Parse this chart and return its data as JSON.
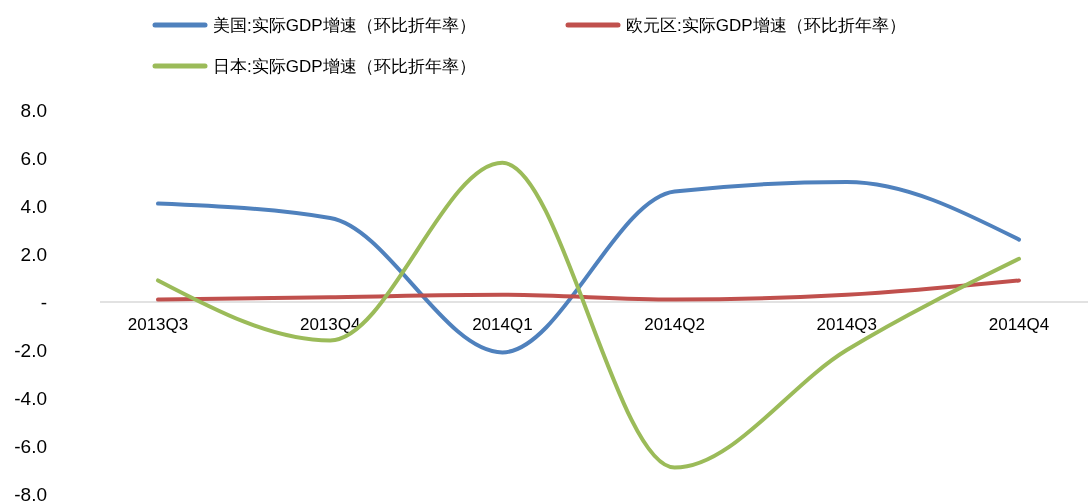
{
  "chart_data": {
    "type": "line",
    "categories": [
      "2013Q3",
      "2013Q4",
      "2014Q1",
      "2014Q2",
      "2014Q3",
      "2014Q4"
    ],
    "series": [
      {
        "name": "美国:实际GDP增速（环比折年率）",
        "color": "#4f81bd",
        "values": [
          4.1,
          3.5,
          -2.1,
          4.6,
          5.0,
          2.6
        ]
      },
      {
        "name": "欧元区:实际GDP增速（环比折年率）",
        "color": "#c0504d",
        "values": [
          0.1,
          0.2,
          0.3,
          0.1,
          0.3,
          0.9
        ]
      },
      {
        "name": "日本:实际GDP增速（环比折年率）",
        "color": "#9bbb59",
        "values": [
          0.9,
          -1.6,
          5.8,
          -6.9,
          -2.0,
          1.8
        ]
      }
    ],
    "ylim": [
      -8,
      8
    ],
    "yticks": [
      {
        "value": -8,
        "label": "-8.0"
      },
      {
        "value": -6,
        "label": "-6.0"
      },
      {
        "value": -4,
        "label": "-4.0"
      },
      {
        "value": -2,
        "label": "-2.0"
      },
      {
        "value": 0,
        "label": "-"
      },
      {
        "value": 2,
        "label": "2.0"
      },
      {
        "value": 4,
        "label": "4.0"
      },
      {
        "value": 6,
        "label": "6.0"
      },
      {
        "value": 8,
        "label": "8.0"
      }
    ],
    "grid": false,
    "legend": "top",
    "marker": "none",
    "line_style": "solid"
  }
}
